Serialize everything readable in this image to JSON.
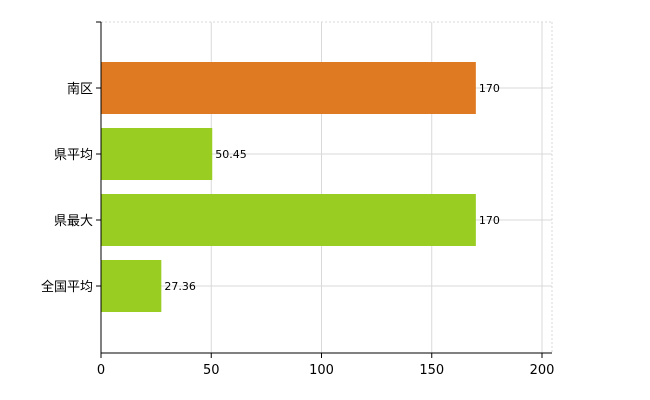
{
  "chart_data": {
    "type": "bar",
    "orientation": "horizontal",
    "title": "",
    "xlabel": "",
    "ylabel": "",
    "categories": [
      "南区",
      "県平均",
      "県最大",
      "全国平均"
    ],
    "values": [
      170,
      50.45,
      170,
      27.36
    ],
    "value_labels": [
      "170",
      "50.45",
      "170",
      "27.36"
    ],
    "colors": [
      "#e07a22",
      "#9acd22",
      "#9acd22",
      "#9acd22"
    ],
    "xlim": [
      0,
      200
    ],
    "xticks": [
      0,
      50,
      100,
      150,
      200
    ],
    "xtick_labels": [
      "0",
      "50",
      "100",
      "150",
      "200"
    ],
    "grid": true,
    "legend": "none"
  }
}
